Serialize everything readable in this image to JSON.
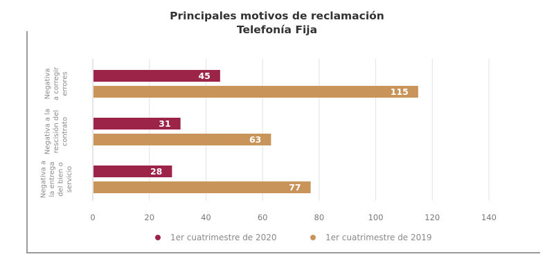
{
  "chart_data": {
    "type": "bar",
    "orientation": "horizontal",
    "title": "Principales motivos de reclamación",
    "subtitle": "Telefonía Fija",
    "categories": [
      [
        "Negativa",
        "a corregir",
        "errores"
      ],
      [
        "Negativa a la",
        "rescisión del",
        "contrato"
      ],
      [
        "Negativa a",
        "la entrega",
        "del bien o",
        "servicio"
      ]
    ],
    "series": [
      {
        "name": "1er cuatrimestre de 2020",
        "color": "#9d2449",
        "values": [
          45,
          31,
          28
        ]
      },
      {
        "name": "1er cuatrimestre de 2019",
        "color": "#c8945a",
        "values": [
          115,
          63,
          77
        ]
      }
    ],
    "xlim": [
      0,
      140
    ],
    "xticks": [
      0,
      20,
      40,
      60,
      80,
      100,
      120,
      140
    ],
    "grid": true,
    "legend_position": "bottom",
    "data_labels": true
  }
}
